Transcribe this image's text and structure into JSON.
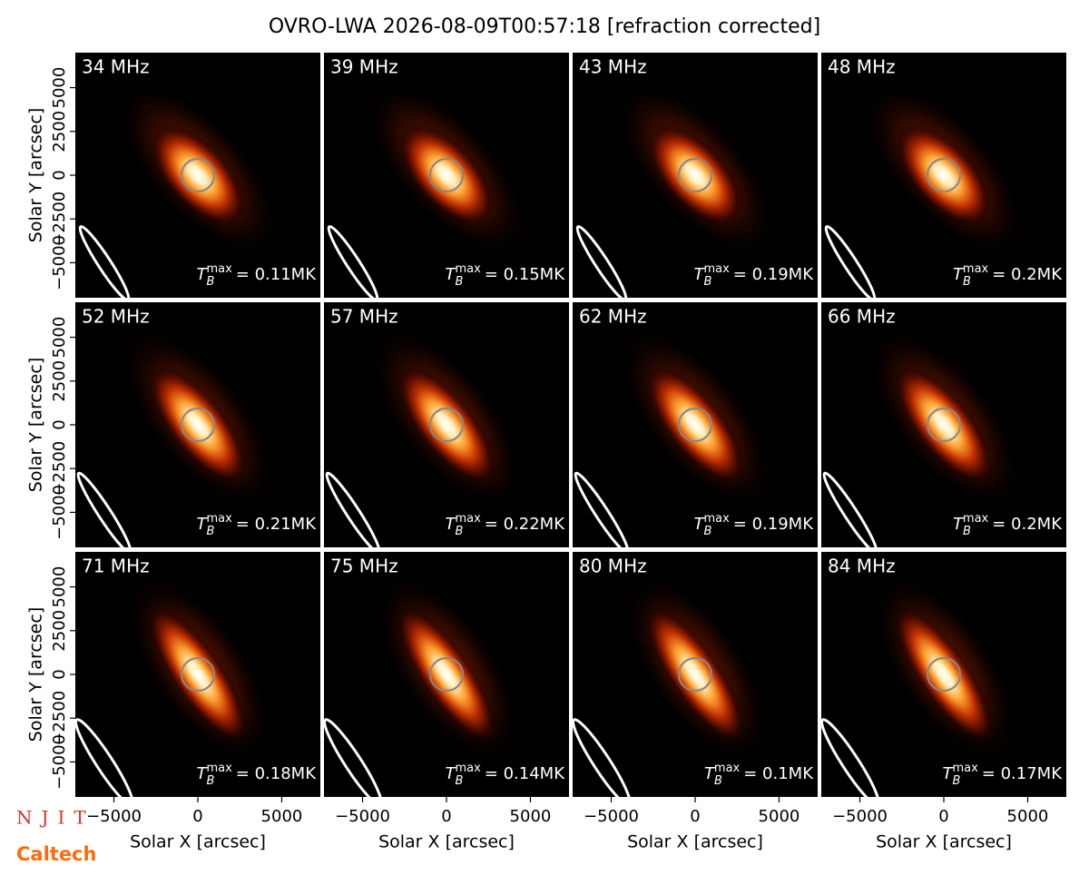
{
  "title": "OVRO-LWA 2026-08-09T00:57:18 [refraction corrected]",
  "logos": [
    "NJIT",
    "Caltech"
  ],
  "chart_data": [
    {
      "type": "image",
      "label": "34 MHz",
      "annotation": {
        "symbol": "T",
        "sub": "B",
        "sup": "max",
        "text": "= 0.11MK"
      },
      "xlim": [
        -7300,
        7300
      ],
      "ylim": [
        -7000,
        7000
      ],
      "ylabel": "Solar Y [arcsec]",
      "yticks": [
        {
          "value": -5000,
          "label": "−5000"
        },
        {
          "value": -2500,
          "label": "−2500"
        },
        0,
        2500,
        5000
      ]
    },
    {
      "type": "image",
      "label": "39 MHz",
      "annotation": {
        "symbol": "T",
        "sub": "B",
        "sup": "max",
        "text": "= 0.15MK"
      },
      "xlim": [
        -7300,
        7300
      ],
      "ylim": [
        -7000,
        7000
      ]
    },
    {
      "type": "image",
      "label": "43 MHz",
      "annotation": {
        "symbol": "T",
        "sub": "B",
        "sup": "max",
        "text": "= 0.19MK"
      },
      "xlim": [
        -7300,
        7300
      ],
      "ylim": [
        -7000,
        7000
      ]
    },
    {
      "type": "image",
      "label": "48 MHz",
      "annotation": {
        "symbol": "T",
        "sub": "B",
        "sup": "max",
        "text": "= 0.2MK"
      },
      "xlim": [
        -7300,
        7300
      ],
      "ylim": [
        -7000,
        7000
      ]
    },
    {
      "type": "image",
      "label": "52 MHz",
      "annotation": {
        "symbol": "T",
        "sub": "B",
        "sup": "max",
        "text": "= 0.21MK"
      },
      "xlim": [
        -7300,
        7300
      ],
      "ylim": [
        -7000,
        7000
      ],
      "ylabel": "Solar Y [arcsec]",
      "yticks": [
        {
          "value": -5000,
          "label": "−5000"
        },
        {
          "value": -2500,
          "label": "−2500"
        },
        0,
        2500,
        5000
      ]
    },
    {
      "type": "image",
      "label": "57 MHz",
      "annotation": {
        "symbol": "T",
        "sub": "B",
        "sup": "max",
        "text": "= 0.22MK"
      },
      "xlim": [
        -7300,
        7300
      ],
      "ylim": [
        -7000,
        7000
      ]
    },
    {
      "type": "image",
      "label": "62 MHz",
      "annotation": {
        "symbol": "T",
        "sub": "B",
        "sup": "max",
        "text": "= 0.19MK"
      },
      "xlim": [
        -7300,
        7300
      ],
      "ylim": [
        -7000,
        7000
      ]
    },
    {
      "type": "image",
      "label": "66 MHz",
      "annotation": {
        "symbol": "T",
        "sub": "B",
        "sup": "max",
        "text": "= 0.2MK"
      },
      "xlim": [
        -7300,
        7300
      ],
      "ylim": [
        -7000,
        7000
      ]
    },
    {
      "type": "image",
      "label": "71 MHz",
      "annotation": {
        "symbol": "T",
        "sub": "B",
        "sup": "max",
        "text": "= 0.18MK"
      },
      "xlim": [
        -7300,
        7300
      ],
      "ylim": [
        -7000,
        7000
      ],
      "ylabel": "Solar Y [arcsec]",
      "yticks": [
        {
          "value": -5000,
          "label": "−5000"
        },
        {
          "value": -2500,
          "label": "−2500"
        },
        0,
        2500,
        5000
      ],
      "xlabel": "Solar X [arcsec]",
      "xticks": [
        {
          "value": -5000,
          "label": "−5000"
        },
        0,
        5000
      ]
    },
    {
      "type": "image",
      "label": "75 MHz",
      "annotation": {
        "symbol": "T",
        "sub": "B",
        "sup": "max",
        "text": "= 0.14MK"
      },
      "xlim": [
        -7300,
        7300
      ],
      "ylim": [
        -7000,
        7000
      ],
      "xlabel": "Solar X [arcsec]",
      "xticks": [
        {
          "value": -5000,
          "label": "−5000"
        },
        0,
        5000
      ]
    },
    {
      "type": "image",
      "label": "80 MHz",
      "annotation": {
        "symbol": "T",
        "sub": "B",
        "sup": "max",
        "text": "= 0.1MK"
      },
      "xlim": [
        -7300,
        7300
      ],
      "ylim": [
        -7000,
        7000
      ],
      "xlabel": "Solar X [arcsec]",
      "xticks": [
        {
          "value": -5000,
          "label": "−5000"
        },
        0,
        5000
      ]
    },
    {
      "type": "image",
      "label": "84 MHz",
      "annotation": {
        "symbol": "T",
        "sub": "B",
        "sup": "max",
        "text": "= 0.17MK"
      },
      "xlim": [
        -7300,
        7300
      ],
      "ylim": [
        -7000,
        7000
      ],
      "xlabel": "Solar X [arcsec]",
      "xticks": [
        {
          "value": -5000,
          "label": "−5000"
        },
        0,
        5000
      ]
    }
  ]
}
